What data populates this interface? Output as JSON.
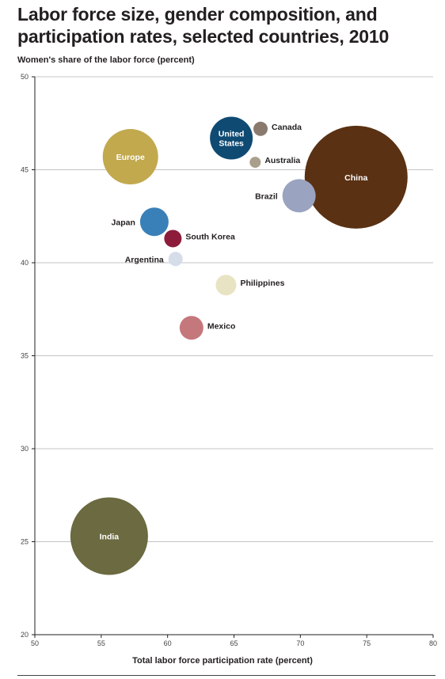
{
  "chart_data": {
    "type": "bubble",
    "title": "Labor force size, gender composition, and participation rates, selected countries, 2010",
    "ylabel": "Women's share of the labor force (percent)",
    "xlabel": "Total labor force participation rate (percent)",
    "xlim": [
      50,
      80
    ],
    "ylim": [
      20,
      50
    ],
    "xticks": [
      50,
      55,
      60,
      65,
      70,
      75,
      80
    ],
    "yticks": [
      20,
      25,
      30,
      35,
      40,
      45,
      50
    ],
    "grid": "horizontal",
    "points": [
      {
        "label": "China",
        "x": 74.2,
        "y": 44.6,
        "size": 65,
        "color": "#5a3113",
        "label_pos": "inside"
      },
      {
        "label": "India",
        "x": 55.6,
        "y": 25.3,
        "size": 49,
        "color": "#6b6a40",
        "label_pos": "inside"
      },
      {
        "label": "Europe",
        "x": 57.2,
        "y": 45.7,
        "size": 35,
        "color": "#c2a94e",
        "label_pos": "inside"
      },
      {
        "label": "United States",
        "label_lines": [
          "United",
          "States"
        ],
        "x": 64.8,
        "y": 46.7,
        "size": 27,
        "color": "#0f4a73",
        "label_pos": "inside"
      },
      {
        "label": "Brazil",
        "x": 69.9,
        "y": 43.6,
        "size": 21,
        "color": "#9aa3bf",
        "label_pos": "left"
      },
      {
        "label": "Japan",
        "x": 59.0,
        "y": 42.2,
        "size": 18,
        "color": "#3a80b8",
        "label_pos": "left"
      },
      {
        "label": "Mexico",
        "x": 61.8,
        "y": 36.5,
        "size": 15,
        "color": "#c4787c",
        "label_pos": "right"
      },
      {
        "label": "Philippines",
        "x": 64.4,
        "y": 38.8,
        "size": 13,
        "color": "#e8e3c2",
        "label_pos": "right"
      },
      {
        "label": "South Korea",
        "x": 60.4,
        "y": 41.3,
        "size": 11,
        "color": "#8c1c3a",
        "label_pos": "right"
      },
      {
        "label": "Canada",
        "x": 67.0,
        "y": 47.2,
        "size": 9,
        "color": "#8a7a6e",
        "label_pos": "right"
      },
      {
        "label": "Argentina",
        "x": 60.6,
        "y": 40.2,
        "size": 9,
        "color": "#d5dde8",
        "label_pos": "left"
      },
      {
        "label": "Australia",
        "x": 66.6,
        "y": 45.4,
        "size": 7,
        "color": "#a9a08b",
        "label_pos": "right"
      }
    ]
  },
  "colors": {
    "axis": "#231f20",
    "grid": "#b0b0b0"
  }
}
